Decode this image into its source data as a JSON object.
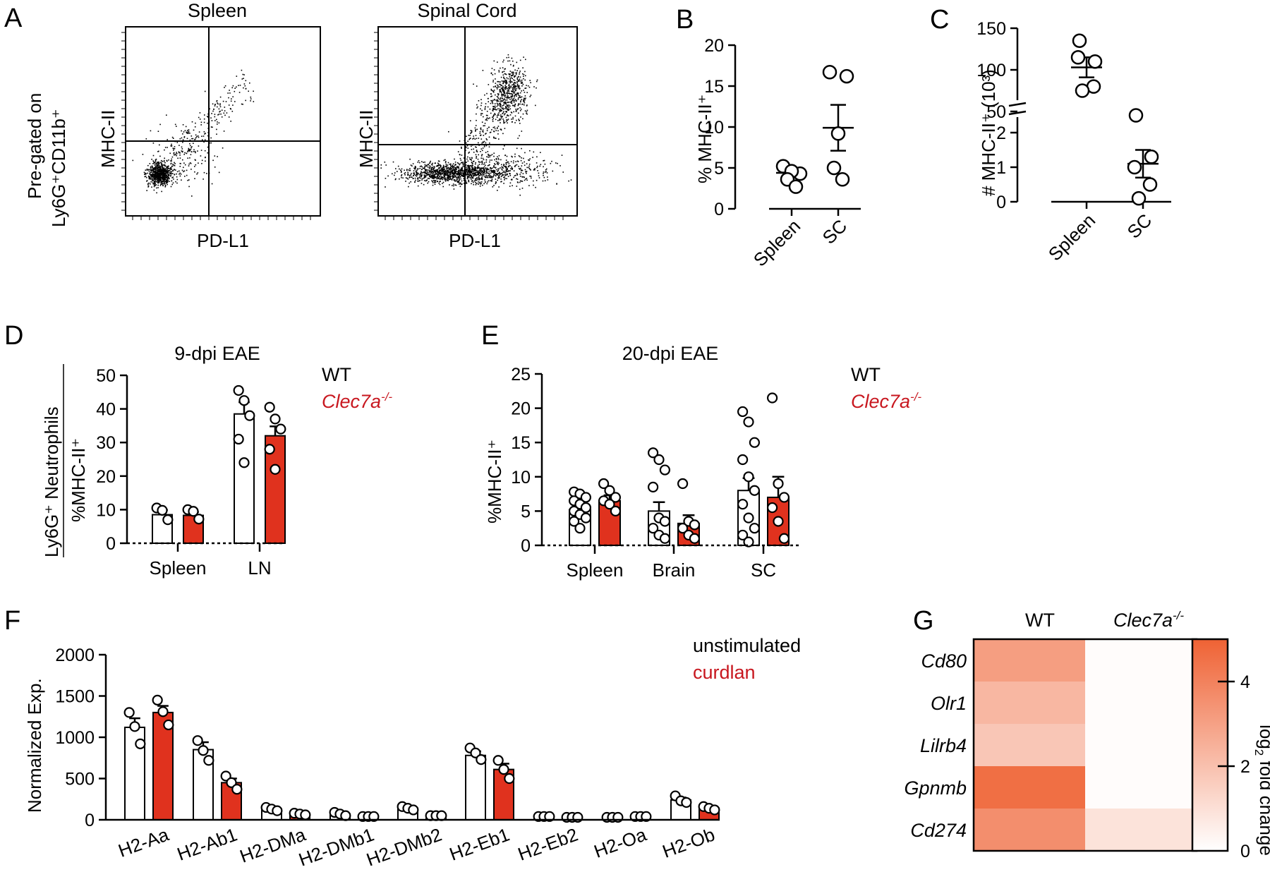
{
  "colors": {
    "wt": "#ffffff",
    "ko": "#e0321e",
    "accent_text": "#c8171f",
    "heat_high": "#ef6234",
    "heat_low": "#ffffff"
  },
  "panels": [
    {
      "id": "A",
      "type": "flow-cytometry",
      "side_label_line1": "Pre-gated on",
      "side_label_line2": "Ly6G⁺CD11b⁺",
      "plots": [
        {
          "title": "Spleen",
          "ylabel": "MHC-II",
          "xlabel": "PD-L1"
        },
        {
          "title": "Spinal Cord",
          "ylabel": "MHC-II",
          "xlabel": "PD-L1"
        }
      ]
    }
  ],
  "chart_data": [
    {
      "panel": "B",
      "type": "scatter",
      "ylabel": "% MHC-II⁺",
      "ylim": [
        0,
        20
      ],
      "yticks": [
        "0",
        "5",
        "10",
        "15",
        "20"
      ],
      "categories": [
        "Spleen",
        "SC"
      ],
      "points": [
        [
          5.2,
          4.3,
          4.6,
          3.6,
          2.7
        ],
        [
          16.7,
          16.2,
          9.2,
          5.0,
          3.6
        ]
      ],
      "means": [
        4.4,
        9.9
      ],
      "sem": [
        0.45,
        2.8
      ]
    },
    {
      "panel": "C",
      "type": "scatter",
      "ylabel": "# MHC-II⁺ (10³)",
      "axis_break": true,
      "yticks_upper": [
        "50",
        "100",
        "150"
      ],
      "yticks_lower": [
        "0",
        "1",
        "2"
      ],
      "categories": [
        "Spleen",
        "SC"
      ],
      "points": [
        [
          135,
          110,
          115,
          80,
          75
        ],
        [
          2.5,
          1.3,
          1.0,
          0.5,
          0.1
        ]
      ],
      "means": [
        103,
        1.1
      ],
      "sem": [
        12,
        0.4
      ]
    },
    {
      "panel": "D",
      "type": "bar",
      "title": "9-dpi EAE",
      "ylabel_line1": "Ly6G⁺ Neutrophils",
      "ylabel_line2": "%MHC-II⁺",
      "ylim": [
        0,
        50
      ],
      "yticks": [
        "0",
        "10",
        "20",
        "30",
        "40",
        "50"
      ],
      "categories": [
        "Spleen",
        "LN"
      ],
      "series": [
        {
          "name": "WT",
          "values": [
            8.5,
            38.5
          ],
          "sem": [
            1.4,
            3.5
          ],
          "points": [
            [
              10.5,
              9.8,
              7.0
            ],
            [
              45.5,
              42.5,
              38.0,
              31.0,
              24.0
            ]
          ]
        },
        {
          "name": "Clec7a-/-",
          "values": [
            8.3,
            32.0
          ],
          "sem": [
            1.0,
            2.8
          ],
          "points": [
            [
              10.0,
              9.5,
              7.2
            ],
            [
              40.5,
              37.0,
              34.0,
              28.0,
              22.0
            ]
          ]
        }
      ],
      "legend": [
        "WT",
        "Clec7a",
        "-/-"
      ]
    },
    {
      "panel": "E",
      "type": "bar",
      "title": "20-dpi EAE",
      "ylabel": "%MHC-II⁺",
      "ylim": [
        0,
        25
      ],
      "yticks": [
        "0",
        "5",
        "10",
        "15",
        "20",
        "25"
      ],
      "categories": [
        "Spleen",
        "Brain",
        "SC"
      ],
      "series": [
        {
          "name": "WT",
          "values": [
            5.2,
            5.0,
            8.0
          ],
          "sem": [
            0.7,
            1.3,
            1.8
          ],
          "points": [
            [
              7.8,
              7.5,
              7.0,
              6.5,
              6.0,
              5.5,
              5.0,
              4.5,
              4.0,
              3.5,
              2.5
            ],
            [
              13.5,
              12.5,
              11.0,
              8.5,
              4.0,
              3.5,
              2.5,
              1.5,
              1.0
            ],
            [
              19.5,
              18.0,
              15.0,
              12.5,
              10.0,
              8.0,
              6.0,
              4.0,
              2.5,
              1.5,
              0.5
            ]
          ]
        },
        {
          "name": "Clec7a-/-",
          "values": [
            6.5,
            3.2,
            7.0
          ],
          "sem": [
            0.8,
            1.2,
            3.0
          ],
          "points": [
            [
              9.0,
              8.0,
              7.0,
              6.5,
              6.0,
              5.0
            ],
            [
              9.0,
              3.5,
              3.0,
              2.5,
              1.5,
              1.0
            ],
            [
              21.5,
              9.0,
              7.0,
              5.5,
              3.5,
              1.0
            ]
          ]
        }
      ],
      "legend": [
        "WT",
        "Clec7a",
        "-/-"
      ]
    },
    {
      "panel": "F",
      "type": "bar",
      "ylabel": "Normalized Exp.",
      "ylim": [
        0,
        2000
      ],
      "yticks": [
        "0",
        "500",
        "1000",
        "1500",
        "2000"
      ],
      "categories": [
        "H2-Aa",
        "H2-Ab1",
        "H2-DMa",
        "H2-DMb1",
        "H2-DMb2",
        "H2-Eb1",
        "H2-Eb2",
        "H2-Oa",
        "H2-Ob"
      ],
      "series": [
        {
          "name": "unstimulated",
          "values": [
            1120,
            850,
            130,
            70,
            140,
            780,
            40,
            30,
            240
          ],
          "sem": [
            110,
            90,
            20,
            20,
            20,
            50,
            5,
            5,
            30
          ],
          "points": [
            [
              1300,
              1130,
              920
            ],
            [
              960,
              840,
              720
            ],
            [
              150,
              130,
              110
            ],
            [
              90,
              70,
              50
            ],
            [
              160,
              140,
              120
            ],
            [
              870,
              810,
              730
            ],
            [
              40,
              40,
              40
            ],
            [
              30,
              30,
              30
            ],
            [
              290,
              230,
              210
            ]
          ]
        },
        {
          "name": "curdlan",
          "values": [
            1300,
            450,
            70,
            40,
            50,
            610,
            30,
            40,
            140
          ],
          "sem": [
            80,
            50,
            10,
            5,
            5,
            70,
            5,
            5,
            20
          ],
          "points": [
            [
              1450,
              1310,
              1150
            ],
            [
              530,
              450,
              370
            ],
            [
              80,
              70,
              60
            ],
            [
              40,
              40,
              40
            ],
            [
              50,
              50,
              50
            ],
            [
              720,
              610,
              500
            ],
            [
              30,
              30,
              30
            ],
            [
              40,
              40,
              40
            ],
            [
              160,
              140,
              120
            ]
          ]
        }
      ],
      "legend": [
        "unstimulated",
        "curdlan"
      ]
    },
    {
      "panel": "G",
      "type": "heatmap",
      "columns": [
        "WT",
        "Clec7a",
        "-/-"
      ],
      "rows": [
        "Cd80",
        "Olr1",
        "Lilrb4",
        "Gpnmb",
        "Cd274"
      ],
      "values": [
        [
          3.1,
          0.1
        ],
        [
          2.3,
          0.1
        ],
        [
          1.8,
          0.1
        ],
        [
          4.6,
          0.1
        ],
        [
          3.6,
          0.9
        ]
      ],
      "colorbar": {
        "range": [
          0,
          5
        ],
        "ticks": [
          "0",
          "2",
          "4"
        ],
        "label_prefix": "log",
        "label_sub": "2",
        "label_suffix": " fold change"
      }
    }
  ],
  "labels": {
    "panel_letters": [
      "A",
      "B",
      "C",
      "D",
      "E",
      "F",
      "G"
    ]
  }
}
